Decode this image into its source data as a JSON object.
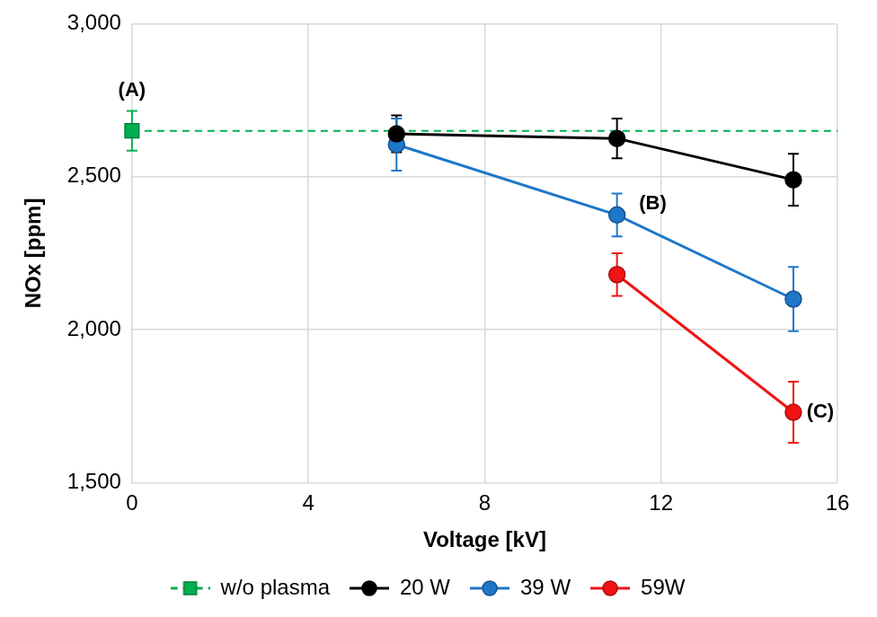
{
  "chart_data": {
    "type": "line",
    "x_label": "Voltage [kV]",
    "y_label": "NOx [ppm]",
    "xlim": [
      0,
      16
    ],
    "xticks": [
      0,
      4,
      8,
      12,
      16
    ],
    "ylim": [
      1500,
      3000
    ],
    "yticks": [
      1500,
      2000,
      2500,
      3000
    ],
    "grid": true,
    "legend": "bottom",
    "series": [
      {
        "name": "w/o plasma",
        "color": "#00b050",
        "marker": "square",
        "line_style": "dashed",
        "x": [
          0
        ],
        "values": [
          2650
        ],
        "errors": [
          65
        ]
      },
      {
        "name": "20 W",
        "color": "#000000",
        "marker": "circle",
        "line_style": "solid",
        "x": [
          6,
          11,
          15
        ],
        "values": [
          2640,
          2625,
          2490
        ],
        "errors": [
          60,
          65,
          85
        ]
      },
      {
        "name": "39 W",
        "color": "#1e77c8",
        "marker": "circle",
        "line_style": "solid",
        "x": [
          6,
          11,
          15
        ],
        "values": [
          2605,
          2375,
          2100
        ],
        "errors": [
          85,
          70,
          105
        ]
      },
      {
        "name": "59W",
        "color": "#f01414",
        "marker": "circle",
        "line_style": "solid",
        "x": [
          11,
          15
        ],
        "values": [
          2180,
          1730
        ],
        "errors": [
          70,
          100
        ]
      }
    ],
    "annotations": [
      {
        "text": "(A)",
        "x": 0,
        "y": 2780
      },
      {
        "text": "(B)",
        "x": 11.5,
        "y": 2410
      },
      {
        "text": "(C)",
        "x": 15.3,
        "y": 1729
      }
    ]
  }
}
